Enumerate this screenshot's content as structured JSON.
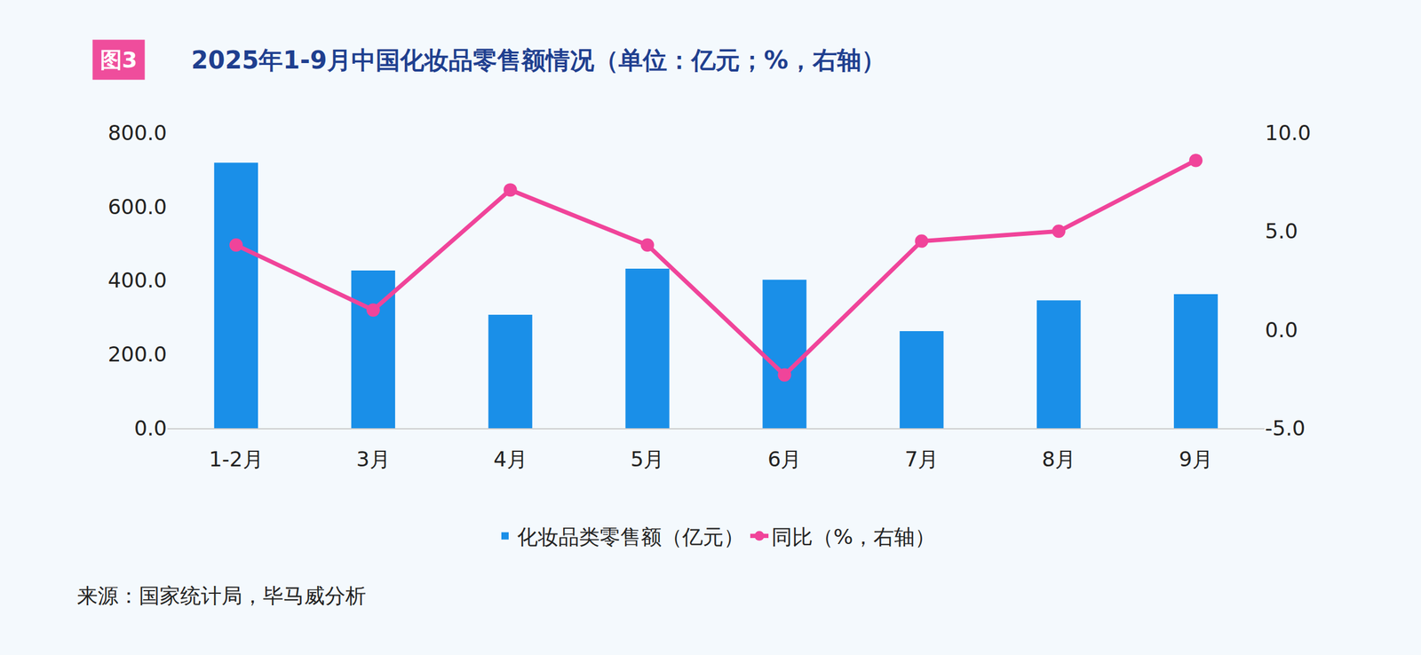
{
  "chart_data": {
    "type": "bar",
    "title": "2025年1-9月中国化妆品零售额情况（单位：亿元；%，右轴）",
    "figure_label": "图3",
    "source": "来源：国家统计局，毕马威分析",
    "categories": [
      "1-2月",
      "3月",
      "4月",
      "5月",
      "6月",
      "7月",
      "8月",
      "9月"
    ],
    "series": [
      {
        "name": "化妆品类零售额（亿元）",
        "type": "bar",
        "color": "#1a8fe8",
        "values": [
          719,
          427,
          307,
          432,
          402,
          263,
          346,
          363
        ]
      },
      {
        "name": "同比（%，右轴）",
        "type": "line",
        "axis": "y2",
        "color": "#f0449a",
        "marker": "circle",
        "values": [
          4.3,
          1.0,
          7.1,
          4.3,
          -2.3,
          4.5,
          5.0,
          8.6
        ]
      }
    ],
    "ylim": [
      0,
      800
    ],
    "yticks": [
      {
        "value": 0,
        "label": "0.0"
      },
      {
        "value": 200,
        "label": "200.0"
      },
      {
        "value": 400,
        "label": "400.0"
      },
      {
        "value": 600,
        "label": "600.0"
      },
      {
        "value": 800,
        "label": "800.0"
      }
    ],
    "y2lim": [
      -5,
      10
    ],
    "y2ticks": [
      {
        "value": -5,
        "label": "-5.0"
      },
      {
        "value": 0,
        "label": "0.0"
      },
      {
        "value": 5,
        "label": "5.0"
      },
      {
        "value": 10,
        "label": "10.0"
      }
    ],
    "grid": false,
    "legend": "bottom"
  }
}
